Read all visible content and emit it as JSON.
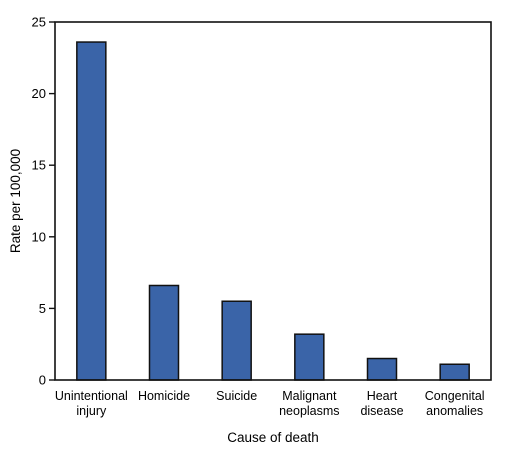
{
  "chart_data": {
    "type": "bar",
    "title": "",
    "xlabel": "Cause of death",
    "ylabel": "Rate per 100,000",
    "ylim": [
      0,
      25
    ],
    "yticks": [
      0,
      5,
      10,
      15,
      20,
      25
    ],
    "grid": false,
    "legend": "none",
    "categories": [
      [
        "Unintentional",
        "injury"
      ],
      [
        "Homicide"
      ],
      [
        "Suicide"
      ],
      [
        "Malignant",
        "neoplasms"
      ],
      [
        "Heart",
        "disease"
      ],
      [
        "Congenital",
        "anomalies"
      ]
    ],
    "values": [
      23.6,
      6.6,
      5.5,
      3.2,
      1.5,
      1.1
    ],
    "bar_color": "#3a64a8",
    "bar_edge_color": "#111111"
  }
}
